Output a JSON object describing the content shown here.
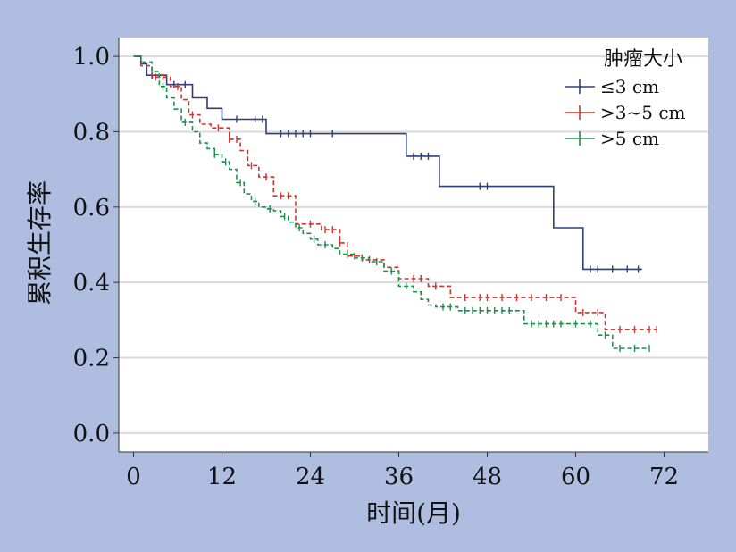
{
  "chart_data": {
    "type": "line",
    "xlabel": "时间(月)",
    "ylabel": "累积生存率",
    "xlim": [
      -2,
      78
    ],
    "ylim": [
      -0.05,
      1.05
    ],
    "xticks": [
      0,
      12,
      24,
      36,
      48,
      60,
      72
    ],
    "xtick_labels": [
      "0",
      "12",
      "24",
      "36",
      "48",
      "60",
      "72"
    ],
    "yticks": [
      0.0,
      0.2,
      0.4,
      0.6,
      0.8,
      1.0
    ],
    "ytick_labels": [
      "0.0",
      "0.2",
      "0.4",
      "0.6",
      "0.8",
      "1.0"
    ],
    "grid": "horizontal",
    "legend": {
      "title": "肿瘤大小",
      "position": "top-right"
    },
    "series": [
      {
        "name": "≤3 cm",
        "color": "#2f3f7a",
        "dash": "solid",
        "steps": [
          [
            0,
            1.0
          ],
          [
            1,
            0.98
          ],
          [
            1.8,
            0.95
          ],
          [
            4.5,
            0.925
          ],
          [
            8,
            0.89
          ],
          [
            10,
            0.862
          ],
          [
            12,
            0.833
          ],
          [
            18,
            0.795
          ],
          [
            37,
            0.735
          ],
          [
            41.5,
            0.655
          ],
          [
            57,
            0.545
          ],
          [
            61,
            0.435
          ],
          [
            69,
            0.435
          ]
        ],
        "censor": [
          2.5,
          5.5,
          7,
          14,
          16.5,
          17.5,
          20,
          21,
          22,
          23,
          24,
          27,
          38,
          39,
          40,
          47,
          48,
          62,
          63,
          65,
          67,
          68.5
        ]
      },
      {
        "name": ">3~5 cm",
        "color": "#d0342c",
        "dash": "dashed",
        "steps": [
          [
            0,
            1.0
          ],
          [
            1,
            0.975
          ],
          [
            2.5,
            0.945
          ],
          [
            5,
            0.92
          ],
          [
            6.5,
            0.885
          ],
          [
            7.5,
            0.845
          ],
          [
            9,
            0.82
          ],
          [
            10.5,
            0.81
          ],
          [
            13,
            0.78
          ],
          [
            14.5,
            0.75
          ],
          [
            15.5,
            0.71
          ],
          [
            17,
            0.68
          ],
          [
            19,
            0.63
          ],
          [
            22,
            0.555
          ],
          [
            25.5,
            0.54
          ],
          [
            28,
            0.505
          ],
          [
            29,
            0.47
          ],
          [
            31,
            0.46
          ],
          [
            34,
            0.44
          ],
          [
            36,
            0.41
          ],
          [
            40,
            0.39
          ],
          [
            43,
            0.36
          ],
          [
            60,
            0.32
          ],
          [
            64,
            0.275
          ],
          [
            71,
            0.275
          ]
        ],
        "censor": [
          3,
          4,
          6,
          8,
          11.5,
          13,
          14,
          16,
          18,
          20,
          21,
          24,
          26,
          27,
          28,
          30,
          32,
          38,
          39,
          41,
          45,
          47,
          48,
          50,
          52,
          54,
          56,
          58,
          61,
          63,
          66,
          68,
          70,
          71
        ]
      },
      {
        "name": ">5 cm",
        "color": "#1f8f4e",
        "dash": "dashed",
        "steps": [
          [
            0,
            1.0
          ],
          [
            1,
            0.985
          ],
          [
            2.5,
            0.96
          ],
          [
            3.5,
            0.92
          ],
          [
            4.5,
            0.89
          ],
          [
            5.5,
            0.86
          ],
          [
            6.5,
            0.825
          ],
          [
            8,
            0.8
          ],
          [
            9,
            0.77
          ],
          [
            10,
            0.755
          ],
          [
            11,
            0.74
          ],
          [
            12,
            0.72
          ],
          [
            13,
            0.7
          ],
          [
            14,
            0.665
          ],
          [
            15,
            0.635
          ],
          [
            16,
            0.615
          ],
          [
            17,
            0.6
          ],
          [
            18,
            0.595
          ],
          [
            19,
            0.59
          ],
          [
            20,
            0.575
          ],
          [
            21,
            0.56
          ],
          [
            22,
            0.545
          ],
          [
            23,
            0.53
          ],
          [
            24,
            0.515
          ],
          [
            25,
            0.5
          ],
          [
            27,
            0.49
          ],
          [
            28,
            0.475
          ],
          [
            30,
            0.465
          ],
          [
            32,
            0.455
          ],
          [
            34,
            0.43
          ],
          [
            36,
            0.39
          ],
          [
            38,
            0.375
          ],
          [
            39,
            0.355
          ],
          [
            40,
            0.34
          ],
          [
            41,
            0.335
          ],
          [
            44,
            0.325
          ],
          [
            53,
            0.29
          ],
          [
            59,
            0.29
          ],
          [
            63,
            0.26
          ],
          [
            65,
            0.225
          ],
          [
            70,
            0.225
          ]
        ],
        "censor": [
          4,
          7,
          11,
          12.5,
          14.5,
          16.5,
          18.5,
          20.5,
          22.5,
          24.5,
          26,
          29,
          31,
          33,
          35,
          37,
          42,
          43,
          45,
          46,
          47,
          48,
          49,
          50,
          51,
          54,
          55,
          56,
          57,
          58,
          60,
          62,
          64,
          66,
          68,
          70
        ]
      }
    ]
  }
}
